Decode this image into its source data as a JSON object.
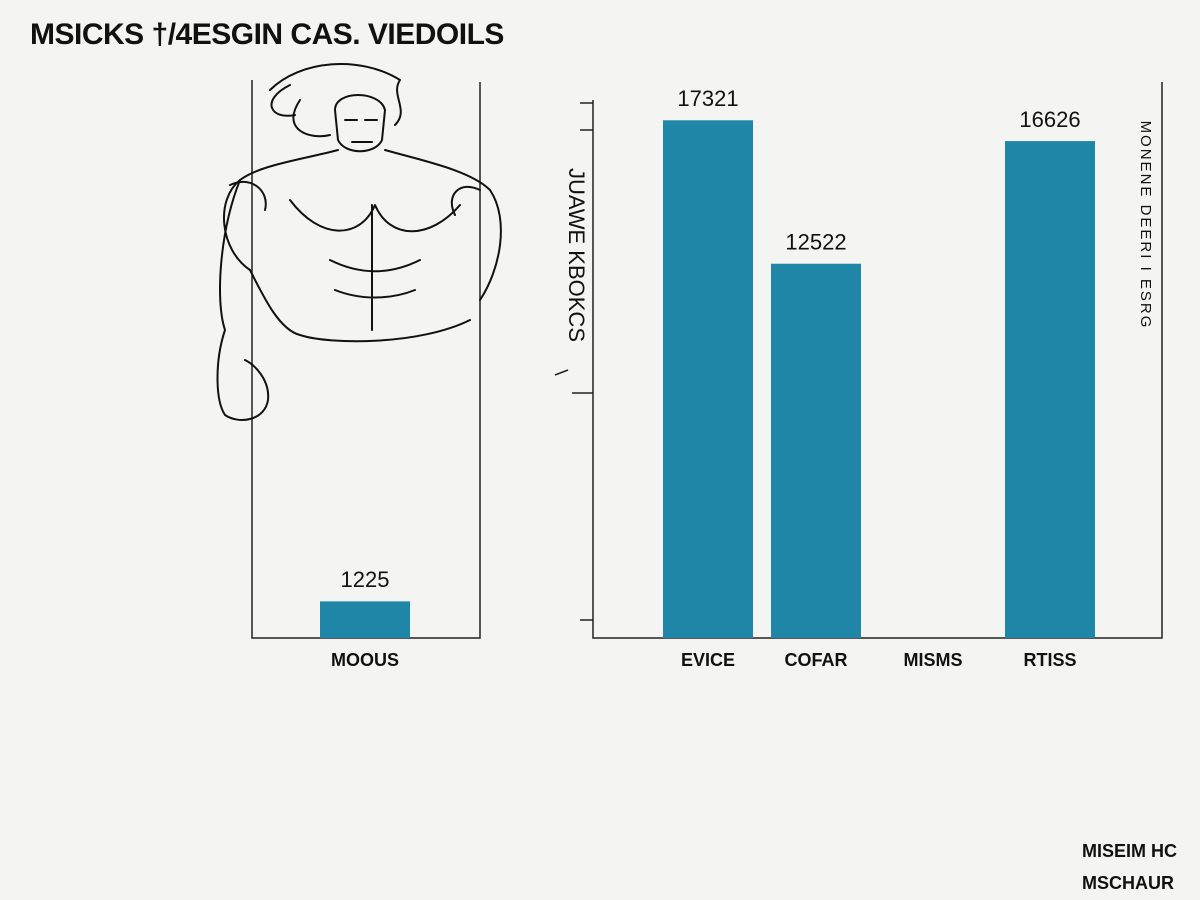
{
  "chart_data": {
    "type": "bar",
    "title": "MSICKS †/4ESGIN CAS. VIEDOILS",
    "y_label": "JUAWE KBOKCS",
    "side_label": "MONENE DEERI I ESRG",
    "footer": [
      "MISEIM HC",
      "MSCHAUR"
    ],
    "categories": [
      "MOOUS",
      "EVICE",
      "COFAR",
      "MISMS",
      "RTISS"
    ],
    "values": [
      1225,
      17321,
      12522,
      null,
      16626
    ],
    "color": "#1f86a8",
    "ylim": [
      0,
      18000
    ]
  }
}
